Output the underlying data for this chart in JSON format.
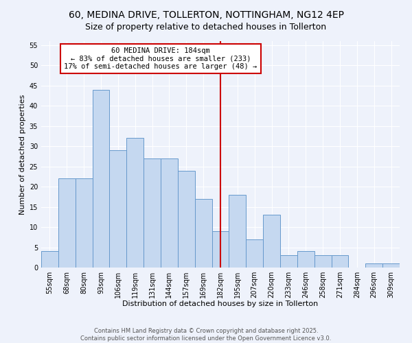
{
  "title": "60, MEDINA DRIVE, TOLLERTON, NOTTINGHAM, NG12 4EP",
  "subtitle": "Size of property relative to detached houses in Tollerton",
  "xlabel": "Distribution of detached houses by size in Tollerton",
  "ylabel": "Number of detached properties",
  "bin_labels": [
    "55sqm",
    "68sqm",
    "80sqm",
    "93sqm",
    "106sqm",
    "119sqm",
    "131sqm",
    "144sqm",
    "157sqm",
    "169sqm",
    "182sqm",
    "195sqm",
    "207sqm",
    "220sqm",
    "233sqm",
    "246sqm",
    "258sqm",
    "271sqm",
    "284sqm",
    "296sqm",
    "309sqm"
  ],
  "bar_values": [
    4,
    22,
    22,
    44,
    29,
    32,
    27,
    27,
    24,
    17,
    9,
    18,
    7,
    13,
    3,
    4,
    3,
    3,
    0,
    1,
    1
  ],
  "bar_color": "#c5d8f0",
  "bar_edge_color": "#6699cc",
  "vline_x": 10,
  "vline_color": "#cc0000",
  "annotation_text": "60 MEDINA DRIVE: 184sqm\n← 83% of detached houses are smaller (233)\n17% of semi-detached houses are larger (48) →",
  "annotation_box_color": "#ffffff",
  "annotation_box_edge_color": "#cc0000",
  "ylim": [
    0,
    56
  ],
  "yticks": [
    0,
    5,
    10,
    15,
    20,
    25,
    30,
    35,
    40,
    45,
    50,
    55
  ],
  "footer_text": "Contains HM Land Registry data © Crown copyright and database right 2025.\nContains public sector information licensed under the Open Government Licence v3.0.",
  "background_color": "#eef2fb",
  "grid_color": "#ffffff",
  "title_fontsize": 10,
  "subtitle_fontsize": 9,
  "axis_label_fontsize": 8,
  "tick_fontsize": 7,
  "annotation_fontsize": 7.5,
  "footer_fontsize": 6
}
